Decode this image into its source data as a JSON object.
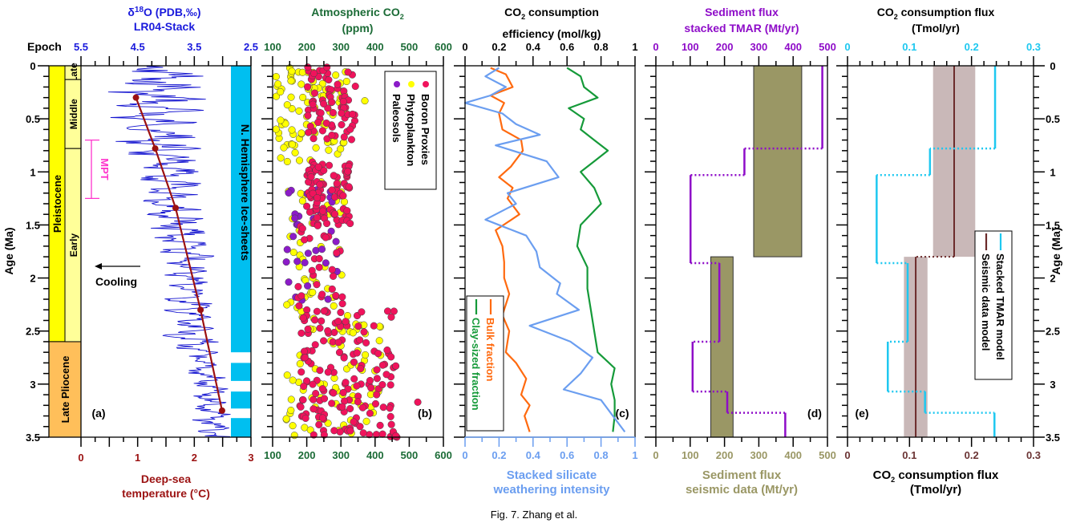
{
  "caption": "Fig. 7. Zhang et al.",
  "shared": {
    "age_label": "Age (Ma)",
    "age_ticks": [
      "0",
      "0.5",
      "1",
      "1.5",
      "2",
      "2.5",
      "3",
      "3.5"
    ],
    "age_range": [
      0,
      3.5
    ]
  },
  "chart_data": [
    {
      "id": "a",
      "type": "line",
      "panel_label": "(a)",
      "title_top": [
        "δ18O (PDB,‰)",
        "LR04-Stack"
      ],
      "top_axis": {
        "label": "δ18O (PDB,‰)",
        "range": [
          5.5,
          2.5
        ],
        "ticks": [
          "5.5",
          "4.5",
          "3.5",
          "2.5"
        ],
        "color": "#1a1adc"
      },
      "bottom_axis": {
        "label": [
          "Deep-sea",
          "temperature (°C)"
        ],
        "range": [
          0,
          3
        ],
        "ticks": [
          "0",
          "1",
          "2",
          "3"
        ],
        "color": "#9b1111"
      },
      "epoch_header": "Epoch",
      "epochs": [
        {
          "name": "Pleistocene",
          "from": 0,
          "to": 2.6,
          "color": "#ffff00"
        },
        {
          "name": "Late Pliocene",
          "from": 2.6,
          "to": 3.5,
          "color": "#ffbf5a"
        }
      ],
      "sub_epochs": [
        {
          "name": "Late",
          "from": 0,
          "to": 0.13
        },
        {
          "name": "Middle",
          "from": 0.13,
          "to": 0.78
        },
        {
          "name": "Early",
          "from": 0.78,
          "to": 2.6
        }
      ],
      "mpt": {
        "label": "MPT",
        "from": 0.7,
        "to": 1.25,
        "color": "#ff33cc"
      },
      "cooling_label": "Cooling",
      "ice_sheet_label": "N. Hemisphere Ice-sheets",
      "ice_sheets": [
        [
          0,
          2.7
        ],
        [
          2.8,
          2.97
        ],
        [
          3.07,
          3.23
        ],
        [
          3.32,
          3.5
        ]
      ],
      "temperature_series": {
        "name": "Deep-sea temperature",
        "color": "#9b1111",
        "points": [
          [
            0.3,
            0.97
          ],
          [
            0.78,
            1.31
          ],
          [
            1.34,
            1.67
          ],
          [
            2.3,
            2.11
          ],
          [
            3.25,
            2.49
          ]
        ]
      },
      "d18o_series": {
        "name": "LR04-Stack",
        "color": "#1515d0",
        "envelope": [
          {
            "age": 0.0,
            "min": 3.2,
            "max": 5.0
          },
          {
            "age": 0.5,
            "min": 3.3,
            "max": 5.1
          },
          {
            "age": 1.0,
            "min": 3.4,
            "max": 4.6
          },
          {
            "age": 1.5,
            "min": 3.2,
            "max": 4.4
          },
          {
            "age": 2.0,
            "min": 3.1,
            "max": 4.0
          },
          {
            "age": 2.5,
            "min": 3.1,
            "max": 4.1
          },
          {
            "age": 3.0,
            "min": 2.9,
            "max": 3.6
          },
          {
            "age": 3.5,
            "min": 2.8,
            "max": 3.5
          }
        ]
      }
    },
    {
      "id": "b",
      "type": "scatter",
      "panel_label": "(b)",
      "title": [
        "Atmospheric CO2",
        "(ppm)"
      ],
      "x_range": [
        100,
        600
      ],
      "x_ticks": [
        "100",
        "200",
        "300",
        "400",
        "500",
        "600"
      ],
      "axis_color": "#1b6b36",
      "legend": [
        {
          "name": "Boron Proxies",
          "color": "#f0135c"
        },
        {
          "name": "Phytoplankton",
          "color": "#ffff00"
        },
        {
          "name": "Paleosols",
          "color": "#8b1bc8"
        }
      ],
      "clusters": [
        {
          "series": "Boron Proxies",
          "age": [
            0.0,
            0.7
          ],
          "co2": [
            200,
            350
          ],
          "n": 70
        },
        {
          "series": "Phytoplankton",
          "age": [
            0.0,
            0.9
          ],
          "co2": [
            110,
            320
          ],
          "n": 90
        },
        {
          "series": "Phytoplankton",
          "age": [
            0.9,
            2.4
          ],
          "co2": [
            140,
            320
          ],
          "n": 45
        },
        {
          "series": "Boron Proxies",
          "age": [
            0.9,
            1.5
          ],
          "co2": [
            200,
            330
          ],
          "n": 90
        },
        {
          "series": "Paleosols",
          "age": [
            1.1,
            2.3
          ],
          "co2": [
            140,
            300
          ],
          "n": 35
        },
        {
          "series": "Boron Proxies",
          "age": [
            1.5,
            2.3
          ],
          "co2": [
            170,
            310
          ],
          "n": 30
        },
        {
          "series": "Boron Proxies",
          "age": [
            2.3,
            3.5
          ],
          "co2": [
            180,
            470
          ],
          "n": 160
        },
        {
          "series": "Phytoplankton",
          "age": [
            2.4,
            3.5
          ],
          "co2": [
            140,
            420
          ],
          "n": 70
        }
      ],
      "outliers": [
        {
          "series": "Phytoplankton",
          "age": 0.33,
          "co2": 370
        },
        {
          "series": "Boron Proxies",
          "age": 3.17,
          "co2": 525
        }
      ]
    },
    {
      "id": "c",
      "type": "line",
      "panel_label": "(c)",
      "title": [
        "CO2 consumption",
        "efficiency (mol/kg)"
      ],
      "top_axis": {
        "range": [
          0,
          1
        ],
        "ticks": [
          "0",
          "0.2",
          "0.4",
          "0.6",
          "0.8",
          "1"
        ],
        "color": "#000000"
      },
      "bottom_axis": {
        "label": [
          "Stacked silicate",
          "weathering intensity"
        ],
        "range": [
          0,
          1
        ],
        "ticks": [
          "0",
          "0.2",
          "0.4",
          "0.6",
          "0.8",
          "1"
        ],
        "color": "#6b9ef0"
      },
      "legend": [
        {
          "name": "Bulk fraction",
          "color": "#ff6a0f"
        },
        {
          "name": "Clay-sized fraction",
          "color": "#159a39"
        }
      ],
      "series": [
        {
          "name": "Bulk fraction",
          "color": "#ff6a0f",
          "points": [
            [
              0.02,
              0.15
            ],
            [
              0.08,
              0.24
            ],
            [
              0.2,
              0.28
            ],
            [
              0.28,
              0.15
            ],
            [
              0.35,
              0.23
            ],
            [
              0.45,
              0.2
            ],
            [
              0.6,
              0.22
            ],
            [
              0.7,
              0.33
            ],
            [
              0.8,
              0.34
            ],
            [
              0.95,
              0.27
            ],
            [
              1.05,
              0.2
            ],
            [
              1.15,
              0.28
            ],
            [
              1.25,
              0.25
            ],
            [
              1.4,
              0.32
            ],
            [
              1.55,
              0.18
            ],
            [
              1.7,
              0.22
            ],
            [
              1.85,
              0.23
            ],
            [
              2.0,
              0.23
            ],
            [
              2.15,
              0.26
            ],
            [
              2.35,
              0.22
            ],
            [
              2.5,
              0.26
            ],
            [
              2.7,
              0.24
            ],
            [
              2.8,
              0.3
            ],
            [
              2.95,
              0.36
            ],
            [
              3.1,
              0.33
            ],
            [
              3.2,
              0.38
            ],
            [
              3.3,
              0.35
            ],
            [
              3.45,
              0.38
            ]
          ]
        },
        {
          "name": "Clay-sized fraction",
          "color": "#159a39",
          "points": [
            [
              0.02,
              0.6
            ],
            [
              0.1,
              0.68
            ],
            [
              0.2,
              0.7
            ],
            [
              0.3,
              0.78
            ],
            [
              0.4,
              0.61
            ],
            [
              0.5,
              0.7
            ],
            [
              0.6,
              0.68
            ],
            [
              0.7,
              0.76
            ],
            [
              0.8,
              0.84
            ],
            [
              0.9,
              0.76
            ],
            [
              1.0,
              0.68
            ],
            [
              1.15,
              0.76
            ],
            [
              1.3,
              0.8
            ],
            [
              1.5,
              0.68
            ],
            [
              1.7,
              0.66
            ],
            [
              1.9,
              0.72
            ],
            [
              2.1,
              0.72
            ],
            [
              2.3,
              0.74
            ],
            [
              2.5,
              0.76
            ],
            [
              2.7,
              0.78
            ],
            [
              2.85,
              0.88
            ],
            [
              3.0,
              0.86
            ],
            [
              3.15,
              0.88
            ],
            [
              3.3,
              0.88
            ],
            [
              3.45,
              0.87
            ]
          ]
        },
        {
          "name": "Stacked silicate weathering intensity",
          "color": "#6b9ef0",
          "points": [
            [
              0.02,
              0.2
            ],
            [
              0.1,
              0.12
            ],
            [
              0.2,
              0.24
            ],
            [
              0.28,
              0.15
            ],
            [
              0.35,
              0.0
            ],
            [
              0.45,
              0.22
            ],
            [
              0.55,
              0.3
            ],
            [
              0.65,
              0.44
            ],
            [
              0.75,
              0.18
            ],
            [
              0.9,
              0.48
            ],
            [
              1.05,
              0.55
            ],
            [
              1.2,
              0.25
            ],
            [
              1.3,
              0.3
            ],
            [
              1.45,
              0.12
            ],
            [
              1.6,
              0.36
            ],
            [
              1.75,
              0.42
            ],
            [
              1.9,
              0.44
            ],
            [
              2.05,
              0.56
            ],
            [
              2.15,
              0.54
            ],
            [
              2.3,
              0.67
            ],
            [
              2.45,
              0.38
            ],
            [
              2.6,
              0.62
            ],
            [
              2.75,
              0.75
            ],
            [
              2.9,
              0.68
            ],
            [
              3.05,
              0.58
            ],
            [
              3.15,
              0.8
            ],
            [
              3.3,
              0.87
            ],
            [
              3.45,
              0.94
            ]
          ]
        }
      ]
    },
    {
      "id": "d",
      "type": "bar",
      "panel_label": "(d)",
      "title": [
        "Sediment flux",
        "stacked TMAR (Mt/yr)"
      ],
      "top_axis": {
        "range": [
          0,
          500
        ],
        "ticks": [
          "0",
          "100",
          "200",
          "300",
          "400",
          "500"
        ],
        "color": "#8e0cc8"
      },
      "bottom_axis": {
        "label": [
          "Sediment flux",
          "seismic data (Mt/yr)"
        ],
        "range": [
          0,
          500
        ],
        "ticks": [
          "0",
          "100",
          "200",
          "300",
          "400",
          "500"
        ],
        "color": "#9a9765"
      },
      "seismic_boxes": [
        {
          "from_age": 0,
          "to_age": 1.8,
          "min": 285,
          "max": 425
        },
        {
          "from_age": 1.8,
          "to_age": 3.5,
          "min": 160,
          "max": 225
        }
      ],
      "tmar_steps": [
        {
          "from_age": 0,
          "to_age": 0.78,
          "value": 485
        },
        {
          "from_age": 0.78,
          "to_age": 1.03,
          "value": 258
        },
        {
          "from_age": 1.03,
          "to_age": 1.86,
          "value": 101
        },
        {
          "from_age": 1.86,
          "to_age": 2.6,
          "value": 185
        },
        {
          "from_age": 2.6,
          "to_age": 3.07,
          "value": 107
        },
        {
          "from_age": 3.07,
          "to_age": 3.27,
          "value": 208
        },
        {
          "from_age": 3.27,
          "to_age": 3.5,
          "value": 377
        }
      ],
      "tmar_color": "#8e0cc8",
      "seismic_color": "#9a9765"
    },
    {
      "id": "e",
      "type": "bar",
      "panel_label": "(e)",
      "title": [
        "CO2 consumption flux",
        "(Tmol/yr)"
      ],
      "top_axis": {
        "range": [
          0,
          0.3
        ],
        "ticks": [
          "0",
          "0.1",
          "0.2",
          "0.3"
        ],
        "color": "#1ec8f0"
      },
      "bottom_axis": {
        "label": [
          "CO2 consumption flux",
          "(Tmol/yr)"
        ],
        "range": [
          0,
          0.3
        ],
        "ticks": [
          "0",
          "0.1",
          "0.2",
          "0.3"
        ],
        "color": "#6b3434"
      },
      "legend": [
        {
          "name": "Stacked TMAR model",
          "color": "#1ec8f0"
        },
        {
          "name": "Seismic data model",
          "color": "#6b2a2a"
        }
      ],
      "seismic_model": [
        {
          "from_age": 0,
          "to_age": 1.8,
          "value": 0.172,
          "min": 0.138,
          "max": 0.206
        },
        {
          "from_age": 1.8,
          "to_age": 3.5,
          "value": 0.11,
          "min": 0.091,
          "max": 0.129
        }
      ],
      "tmar_steps": [
        {
          "from_age": 0,
          "to_age": 0.78,
          "value": 0.238
        },
        {
          "from_age": 0.78,
          "to_age": 1.03,
          "value": 0.133
        },
        {
          "from_age": 1.03,
          "to_age": 1.86,
          "value": 0.047
        },
        {
          "from_age": 1.86,
          "to_age": 2.6,
          "value": 0.097
        },
        {
          "from_age": 2.6,
          "to_age": 3.07,
          "value": 0.065
        },
        {
          "from_age": 3.07,
          "to_age": 3.27,
          "value": 0.125
        },
        {
          "from_age": 3.27,
          "to_age": 3.5,
          "value": 0.237
        }
      ],
      "band_color": "#c9b8b8"
    }
  ]
}
